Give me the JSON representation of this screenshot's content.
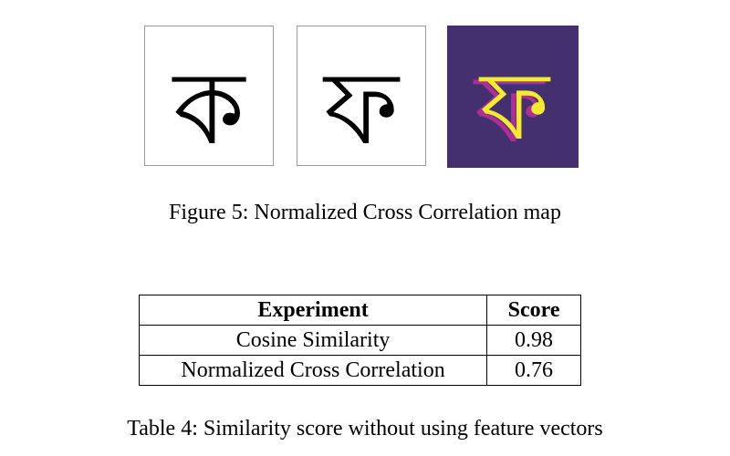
{
  "figure": {
    "panels": [
      {
        "name": "ka-glyph-panel",
        "glyph": "ক",
        "glyph_color": "#000000",
        "background": "#ffffff"
      },
      {
        "name": "pha-glyph-panel",
        "glyph": "ফ",
        "glyph_color": "#000000",
        "background": "#ffffff"
      },
      {
        "name": "correlation-map-panel",
        "glyph": "ফ",
        "glyph_color": "#f4ea2e",
        "shadow_color": "#bf2fa0",
        "background": "#44306e"
      }
    ],
    "caption": "Figure 5: Normalized Cross Correlation map"
  },
  "table": {
    "headers": {
      "experiment": "Experiment",
      "score": "Score"
    },
    "rows": [
      {
        "experiment": "Cosine Similarity",
        "score": "0.98"
      },
      {
        "experiment": "Normalized Cross Correlation",
        "score": "0.76"
      }
    ],
    "caption": "Table 4: Similarity score without using feature vectors"
  }
}
